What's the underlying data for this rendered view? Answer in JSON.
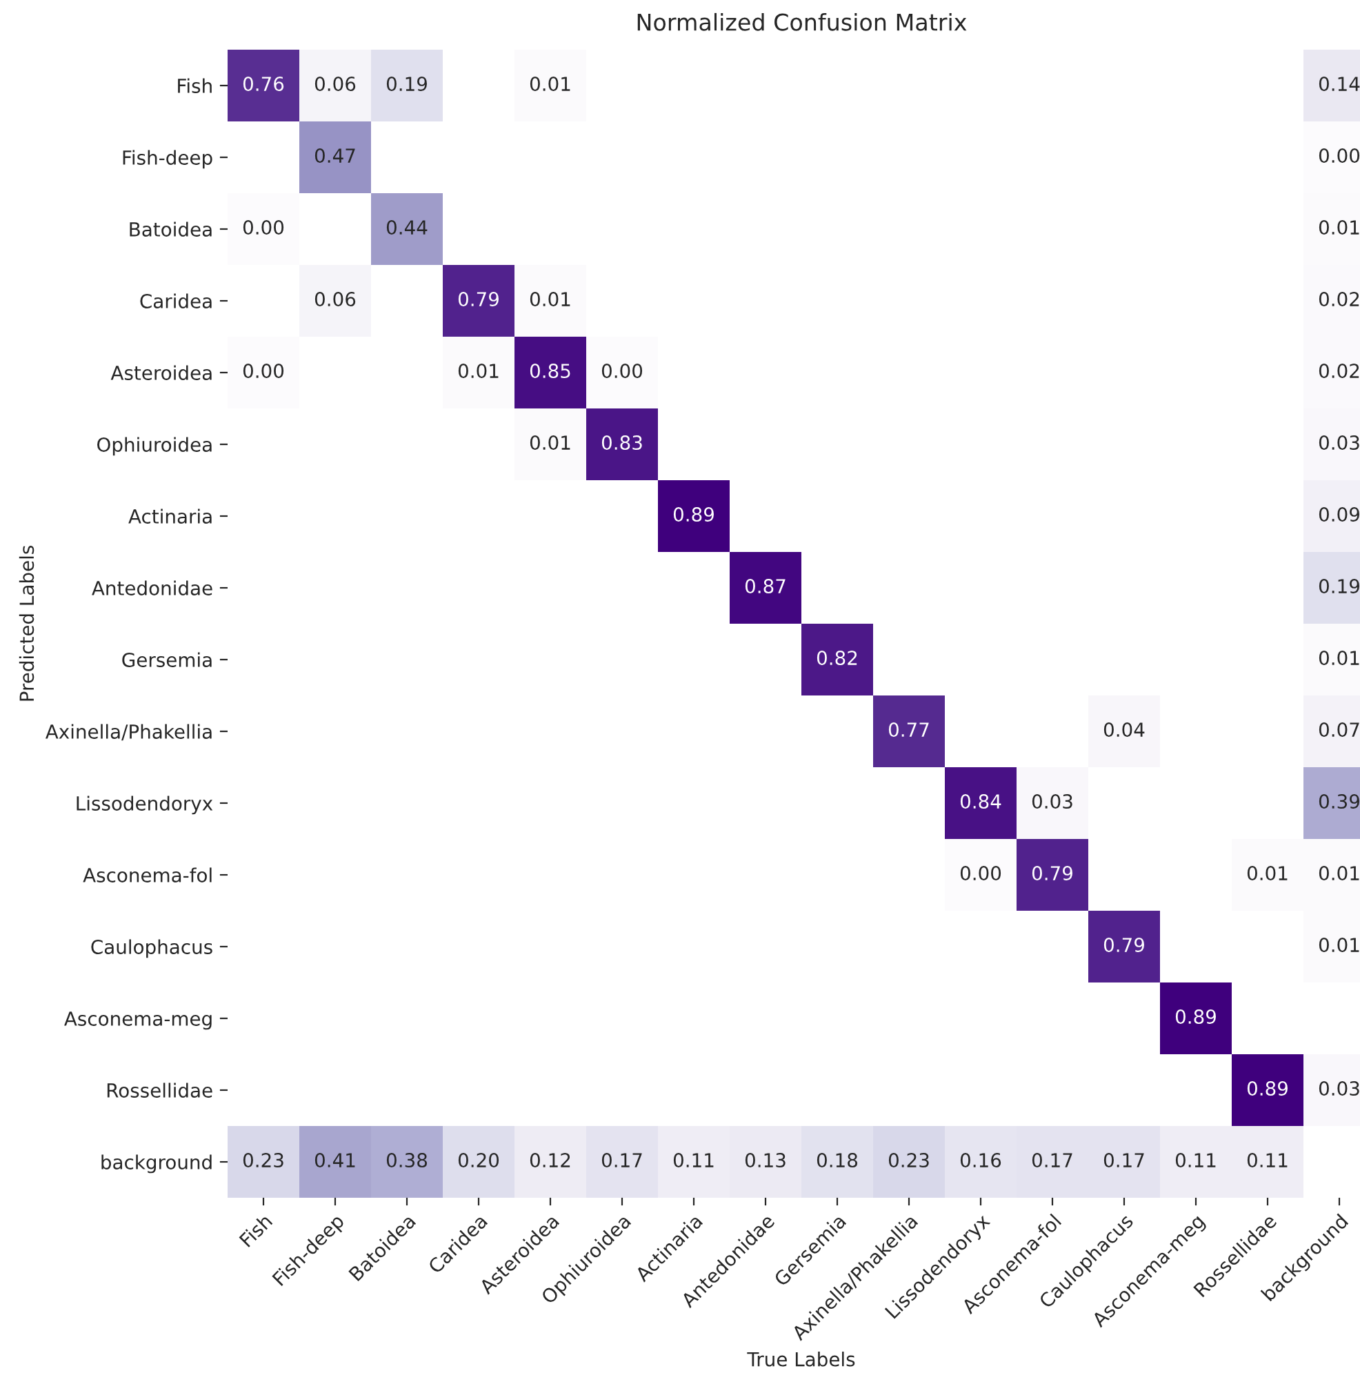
{
  "chart_data": {
    "type": "heatmap",
    "title": "Normalized Confusion Matrix",
    "xlabel": "True Labels",
    "ylabel": "Predicted Labels",
    "categories": [
      "Fish",
      "Fish-deep",
      "Batoidea",
      "Caridea",
      "Asteroidea",
      "Ophiuroidea",
      "Actinaria",
      "Antedonidae",
      "Gersemia",
      "Axinella/Phakellia",
      "Lissodendoryx",
      "Asconema-fol",
      "Caulophacus",
      "Asconema-meg",
      "Rossellidae",
      "background"
    ],
    "y_categories": [
      "Fish",
      "Fish-deep",
      "Batoidea",
      "Caridea",
      "Asteroidea",
      "Ophiuroidea",
      "Actinaria",
      "Antedonidae",
      "Gersemia",
      "Axinella/Phakellia",
      "Lissodendoryx",
      "Asconema-fol",
      "Caulophacus",
      "Asconema-meg",
      "Rossellidae",
      "background"
    ],
    "cells": [
      [
        0.76,
        0.06,
        0.19,
        null,
        0.01,
        null,
        null,
        null,
        null,
        null,
        null,
        null,
        null,
        null,
        null,
        0.14
      ],
      [
        null,
        0.47,
        null,
        null,
        null,
        null,
        null,
        null,
        null,
        null,
        null,
        null,
        null,
        null,
        null,
        0.0
      ],
      [
        0.0,
        null,
        0.44,
        null,
        null,
        null,
        null,
        null,
        null,
        null,
        null,
        null,
        null,
        null,
        null,
        0.01
      ],
      [
        null,
        0.06,
        null,
        0.79,
        0.01,
        null,
        null,
        null,
        null,
        null,
        null,
        null,
        null,
        null,
        null,
        0.02
      ],
      [
        0.0,
        null,
        null,
        0.01,
        0.85,
        0.0,
        null,
        null,
        null,
        null,
        null,
        null,
        null,
        null,
        null,
        0.02
      ],
      [
        null,
        null,
        null,
        null,
        0.01,
        0.83,
        null,
        null,
        null,
        null,
        null,
        null,
        null,
        null,
        null,
        0.03
      ],
      [
        null,
        null,
        null,
        null,
        null,
        null,
        0.89,
        null,
        null,
        null,
        null,
        null,
        null,
        null,
        null,
        0.09
      ],
      [
        null,
        null,
        null,
        null,
        null,
        null,
        null,
        0.87,
        null,
        null,
        null,
        null,
        null,
        null,
        null,
        0.19
      ],
      [
        null,
        null,
        null,
        null,
        null,
        null,
        null,
        null,
        0.82,
        null,
        null,
        null,
        null,
        null,
        null,
        0.01
      ],
      [
        null,
        null,
        null,
        null,
        null,
        null,
        null,
        null,
        null,
        0.77,
        null,
        null,
        0.04,
        null,
        null,
        0.07
      ],
      [
        null,
        null,
        null,
        null,
        null,
        null,
        null,
        null,
        null,
        null,
        0.84,
        0.03,
        null,
        null,
        null,
        0.39
      ],
      [
        null,
        null,
        null,
        null,
        null,
        null,
        null,
        null,
        null,
        null,
        0.0,
        0.79,
        null,
        null,
        0.01,
        0.01
      ],
      [
        null,
        null,
        null,
        null,
        null,
        null,
        null,
        null,
        null,
        null,
        null,
        null,
        0.79,
        null,
        null,
        0.01
      ],
      [
        null,
        null,
        null,
        null,
        null,
        null,
        null,
        null,
        null,
        null,
        null,
        null,
        null,
        0.89,
        null,
        null
      ],
      [
        null,
        null,
        null,
        null,
        null,
        null,
        null,
        null,
        null,
        null,
        null,
        null,
        null,
        null,
        0.89,
        0.03
      ],
      [
        0.23,
        0.41,
        0.38,
        0.2,
        0.12,
        0.17,
        0.11,
        0.13,
        0.18,
        0.23,
        0.16,
        0.17,
        0.17,
        0.11,
        0.11,
        null
      ]
    ],
    "cell_labels": [
      [
        "0.76",
        "0.06",
        "0.19",
        null,
        "0.01",
        null,
        null,
        null,
        null,
        null,
        null,
        null,
        null,
        null,
        null,
        "0.14"
      ],
      [
        null,
        "0.47",
        null,
        null,
        null,
        null,
        null,
        null,
        null,
        null,
        null,
        null,
        null,
        null,
        null,
        "0.00"
      ],
      [
        "0.00",
        null,
        "0.44",
        null,
        null,
        null,
        null,
        null,
        null,
        null,
        null,
        null,
        null,
        null,
        null,
        "0.01"
      ],
      [
        null,
        "0.06",
        null,
        "0.79",
        "0.01",
        null,
        null,
        null,
        null,
        null,
        null,
        null,
        null,
        null,
        null,
        "0.02"
      ],
      [
        "0.00",
        null,
        null,
        "0.01",
        "0.85",
        "0.00",
        null,
        null,
        null,
        null,
        null,
        null,
        null,
        null,
        null,
        "0.02"
      ],
      [
        null,
        null,
        null,
        null,
        "0.01",
        "0.83",
        null,
        null,
        null,
        null,
        null,
        null,
        null,
        null,
        null,
        "0.03"
      ],
      [
        null,
        null,
        null,
        null,
        null,
        null,
        "0.89",
        null,
        null,
        null,
        null,
        null,
        null,
        null,
        null,
        "0.09"
      ],
      [
        null,
        null,
        null,
        null,
        null,
        null,
        null,
        "0.87",
        null,
        null,
        null,
        null,
        null,
        null,
        null,
        "0.19"
      ],
      [
        null,
        null,
        null,
        null,
        null,
        null,
        null,
        null,
        "0.82",
        null,
        null,
        null,
        null,
        null,
        null,
        "0.01"
      ],
      [
        null,
        null,
        null,
        null,
        null,
        null,
        null,
        null,
        null,
        "0.77",
        null,
        null,
        "0.04",
        null,
        null,
        "0.07"
      ],
      [
        null,
        null,
        null,
        null,
        null,
        null,
        null,
        null,
        null,
        null,
        "0.84",
        "0.03",
        null,
        null,
        null,
        "0.39"
      ],
      [
        null,
        null,
        null,
        null,
        null,
        null,
        null,
        null,
        null,
        null,
        "0.00",
        "0.79",
        null,
        null,
        "0.01",
        "0.01"
      ],
      [
        null,
        null,
        null,
        null,
        null,
        null,
        null,
        null,
        null,
        null,
        null,
        null,
        "0.79",
        null,
        null,
        "0.01"
      ],
      [
        null,
        null,
        null,
        null,
        null,
        null,
        null,
        null,
        null,
        null,
        null,
        null,
        null,
        "0.89",
        null,
        null
      ],
      [
        null,
        null,
        null,
        null,
        null,
        null,
        null,
        null,
        null,
        null,
        null,
        null,
        null,
        null,
        "0.89",
        "0.03"
      ],
      [
        "0.23",
        "0.41",
        "0.38",
        "0.20",
        "0.12",
        "0.17",
        "0.11",
        "0.13",
        "0.18",
        "0.23",
        "0.16",
        "0.17",
        "0.17",
        "0.11",
        "0.11",
        null
      ]
    ]
  }
}
